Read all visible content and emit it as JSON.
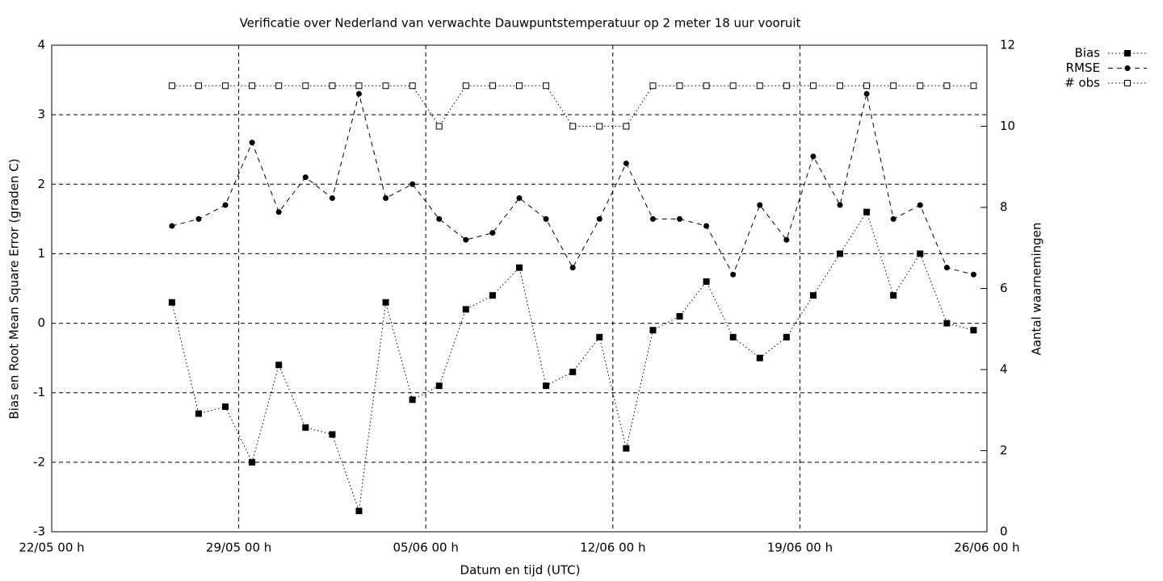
{
  "chart_data": {
    "type": "line",
    "title": "Verificatie over Nederland van verwachte Dauwpuntstemperatuur op 2 meter 18 uur vooruit",
    "xlabel": "Datum en tijd (UTC)",
    "ylabel": "Bias en Root Mean Square Error (graden C)",
    "y2label": "Aantal waarnemingen",
    "x": [
      "26/05 12 h",
      "27/05 12 h",
      "28/05 12 h",
      "29/05 12 h",
      "30/05 12 h",
      "31/05 12 h",
      "01/06 12 h",
      "02/06 12 h",
      "03/06 12 h",
      "04/06 12 h",
      "05/06 12 h",
      "06/06 12 h",
      "07/06 12 h",
      "08/06 12 h",
      "09/06 12 h",
      "10/06 12 h",
      "11/06 12 h",
      "12/06 12 h",
      "13/06 12 h",
      "14/06 12 h",
      "15/06 12 h",
      "16/06 12 h",
      "17/06 12 h",
      "18/06 12 h",
      "19/06 12 h",
      "20/06 12 h",
      "21/06 12 h",
      "22/06 12 h",
      "23/06 12 h",
      "24/06 12 h",
      "25/06 12 h"
    ],
    "xlim": [
      "22/05 00 h",
      "26/06 00 h"
    ],
    "xticks": [
      "22/05 00 h",
      "29/05 00 h",
      "05/06 00 h",
      "12/06 00 h",
      "19/06 00 h",
      "26/06 00 h"
    ],
    "ylim": [
      -3,
      4
    ],
    "yticks": [
      -3,
      -2,
      -1,
      0,
      1,
      2,
      3,
      4
    ],
    "y2lim": [
      0,
      12
    ],
    "y2ticks": [
      0,
      2,
      4,
      6,
      8,
      10,
      12
    ],
    "grid": true,
    "series": [
      {
        "name": "Bias",
        "color": "#000000",
        "dash": "dotted",
        "marker": "filled-square",
        "values": [
          0.3,
          -1.3,
          -1.2,
          -2.0,
          -0.6,
          -1.5,
          -1.6,
          -2.7,
          0.3,
          -1.1,
          -0.9,
          0.2,
          0.4,
          0.8,
          -0.9,
          -0.7,
          -0.2,
          -1.8,
          -0.1,
          0.1,
          0.6,
          -0.2,
          -0.5,
          -0.2,
          0.4,
          1.0,
          1.6,
          0.4,
          1.0,
          0.0,
          -0.1
        ]
      },
      {
        "name": "RMSE",
        "color": "#000000",
        "dash": "dashed",
        "marker": "filled-circle",
        "values": [
          1.4,
          1.5,
          1.7,
          2.6,
          1.6,
          2.1,
          1.8,
          3.3,
          1.8,
          2.0,
          1.5,
          1.2,
          1.3,
          1.8,
          1.5,
          0.8,
          1.5,
          2.3,
          1.5,
          1.5,
          1.4,
          0.7,
          1.7,
          1.2,
          2.4,
          1.7,
          3.3,
          1.5,
          1.7,
          0.8,
          0.7
        ]
      },
      {
        "name": "# obs",
        "color": "#000000",
        "dash": "dotted",
        "marker": "open-square",
        "axis": "y2",
        "values": [
          11,
          11,
          11,
          11,
          11,
          11,
          11,
          11,
          11,
          11,
          10,
          11,
          11,
          11,
          11,
          10,
          10,
          10,
          11,
          11,
          11,
          11,
          11,
          11,
          11,
          11,
          11,
          11,
          11,
          11,
          11
        ]
      }
    ]
  }
}
